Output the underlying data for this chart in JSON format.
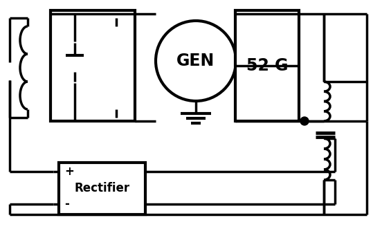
{
  "bg_color": "#ffffff",
  "line_color": "#000000",
  "line_width": 2.5,
  "fig_width": 5.52,
  "fig_height": 3.44,
  "dpi": 100
}
